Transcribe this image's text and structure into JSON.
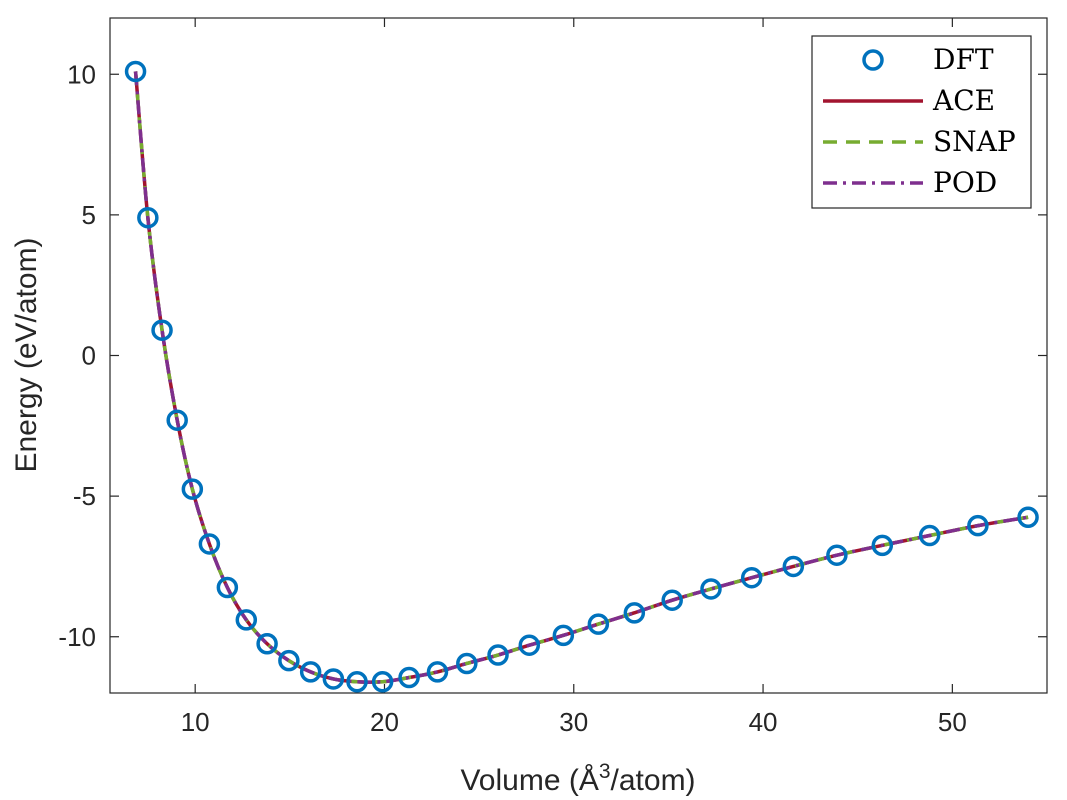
{
  "chart_data": {
    "type": "line",
    "xlabel": "Volume (Å",
    "xlabel_sup": "3",
    "xlabel_suffix": "/atom)",
    "ylabel": "Energy (eV/atom)",
    "xlim": [
      5.5,
      55
    ],
    "ylim": [
      -12,
      12
    ],
    "xticks": [
      10,
      20,
      30,
      40,
      50
    ],
    "yticks": [
      10,
      5,
      0,
      -5,
      -10
    ],
    "legend_position": "top-right",
    "grid": false,
    "series": [
      {
        "name": "DFT",
        "style": "markers",
        "color": "#0072BD",
        "x": [
          6.85,
          7.5,
          8.25,
          9.05,
          9.85,
          10.75,
          11.7,
          12.7,
          13.8,
          14.95,
          16.1,
          17.3,
          18.55,
          19.9,
          21.3,
          22.8,
          24.35,
          26.0,
          27.65,
          29.45,
          31.3,
          33.2,
          35.2,
          37.25,
          39.4,
          41.6,
          43.9,
          46.3,
          48.8,
          51.35,
          54.0
        ],
        "y": [
          10.1,
          4.9,
          0.9,
          -2.3,
          -4.75,
          -6.7,
          -8.25,
          -9.4,
          -10.25,
          -10.85,
          -11.25,
          -11.5,
          -11.6,
          -11.6,
          -11.45,
          -11.25,
          -10.95,
          -10.65,
          -10.3,
          -9.95,
          -9.55,
          -9.15,
          -8.7,
          -8.3,
          -7.9,
          -7.5,
          -7.1,
          -6.75,
          -6.4,
          -6.05,
          -5.75
        ]
      },
      {
        "name": "ACE",
        "style": "solid",
        "color": "#A2142F"
      },
      {
        "name": "SNAP",
        "style": "dashed",
        "color": "#77AC30"
      },
      {
        "name": "POD",
        "style": "dashdot",
        "color": "#7E2F8E"
      }
    ]
  }
}
